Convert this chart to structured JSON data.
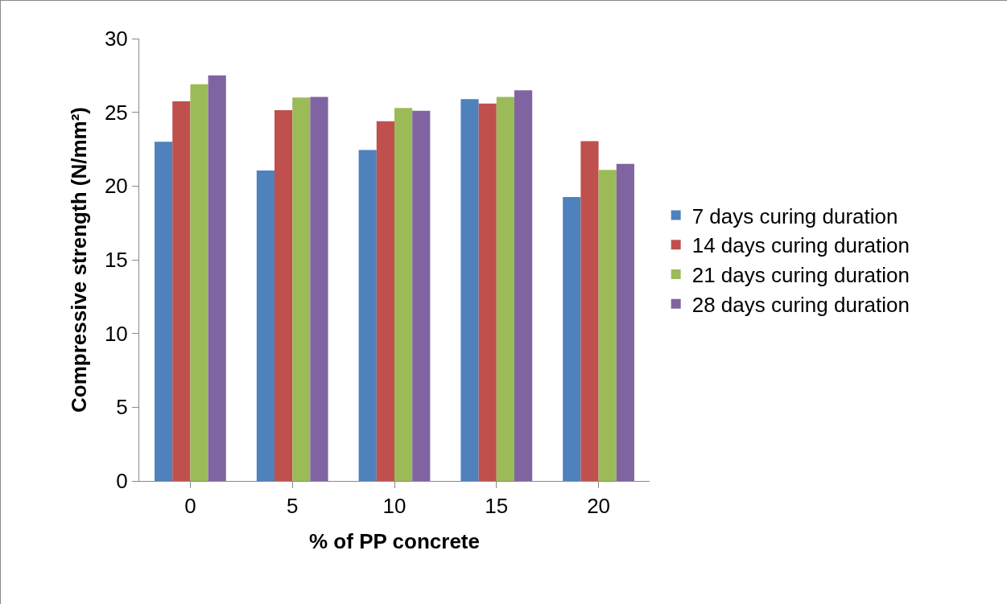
{
  "chart_data": {
    "type": "bar",
    "xlabel": "% of PP concrete",
    "ylabel": "Compressive strength (N/mm²)",
    "categories": [
      "0",
      "5",
      "10",
      "15",
      "20"
    ],
    "series": [
      {
        "name": "7 days curing duration",
        "color": "#4f81bd",
        "values": [
          23.0,
          21.05,
          22.45,
          25.9,
          19.25
        ]
      },
      {
        "name": "14 days curing duration",
        "color": "#c0504d",
        "values": [
          25.75,
          25.15,
          24.4,
          25.6,
          23.05
        ]
      },
      {
        "name": "21 days curing duration",
        "color": "#9bbb59",
        "values": [
          26.9,
          26.0,
          25.3,
          26.05,
          21.1
        ]
      },
      {
        "name": "28 days curing duration",
        "color": "#8064a2",
        "values": [
          27.5,
          26.05,
          25.1,
          26.5,
          21.5
        ]
      }
    ],
    "ylim": [
      0,
      30
    ],
    "yticks": [
      0,
      5,
      10,
      15,
      20,
      25,
      30
    ],
    "grid": false,
    "legend": "right"
  }
}
